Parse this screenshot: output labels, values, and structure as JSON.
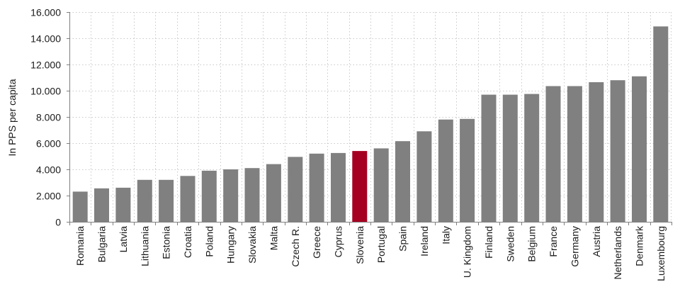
{
  "chart_data": {
    "type": "bar",
    "title": "",
    "xlabel": "",
    "ylabel": "In PPS per capita",
    "ylim": [
      0,
      16000
    ],
    "yticks": [
      0,
      2000,
      4000,
      6000,
      8000,
      10000,
      12000,
      14000,
      16000
    ],
    "ytick_labels": [
      "0",
      "2.000",
      "4.000",
      "6.000",
      "8.000",
      "10.000",
      "12.000",
      "14.000",
      "16.000"
    ],
    "grid": true,
    "legend": "none",
    "colors": {
      "default": "#808080",
      "highlight": "#a50021"
    },
    "highlight": "Slovenia",
    "categories": [
      "Romania",
      "Bulgaria",
      "Latvia",
      "Lithuania",
      "Estonia",
      "Croatia",
      "Poland",
      "Hungary",
      "Slovakia",
      "Malta",
      "Czech R.",
      "Greece",
      "Cyprus",
      "Slovenia",
      "Portugal",
      "Spain",
      "Ireland",
      "Italy",
      "U. Kingdom",
      "Finland",
      "Sweden",
      "Belgium",
      "France",
      "Germany",
      "Austria",
      "Netherlands",
      "Denmark",
      "Luxembourg"
    ],
    "values": [
      2300,
      2550,
      2600,
      3200,
      3200,
      3500,
      3900,
      4000,
      4100,
      4400,
      4950,
      5200,
      5250,
      5400,
      5600,
      6150,
      6900,
      7800,
      7850,
      9700,
      9700,
      9750,
      10350,
      10350,
      10650,
      10800,
      11100,
      14900
    ]
  }
}
